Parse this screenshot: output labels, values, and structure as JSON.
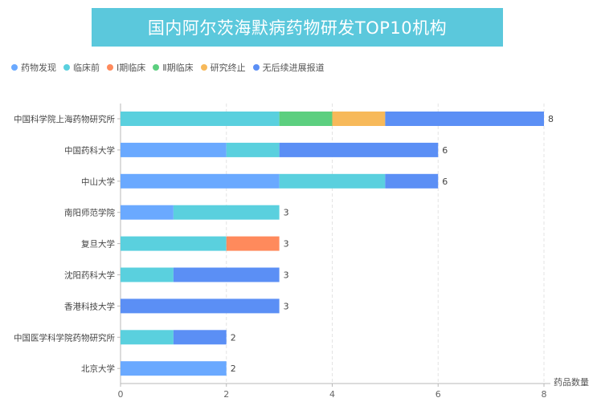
{
  "chart_data": {
    "type": "bar",
    "orientation": "horizontal",
    "stacked": true,
    "title": "国内阿尔茨海默病药物研发TOP10机构",
    "xlabel": "药品数量",
    "ylabel": "",
    "xlim": [
      0,
      8
    ],
    "x_ticks": [
      "0",
      "2",
      "4",
      "6",
      "8"
    ],
    "grid": "vertical dashed",
    "legend_position": "top-left",
    "categories": [
      "中国科学院上海药物研究所",
      "中国药科大学",
      "中山大学",
      "南阳师范学院",
      "复旦大学",
      "沈阳药科大学",
      "香港科技大学",
      "中国医学科学院药物研究所",
      "北京大学"
    ],
    "totals": [
      8,
      6,
      6,
      3,
      3,
      3,
      3,
      2,
      2
    ],
    "series": [
      {
        "name": "药物发现",
        "color": "#6aa9ff",
        "values": [
          0,
          2,
          3,
          1,
          0,
          0,
          0,
          0,
          2
        ]
      },
      {
        "name": "临床前",
        "color": "#5ad0de",
        "values": [
          3,
          1,
          2,
          2,
          2,
          1,
          0,
          1,
          0
        ]
      },
      {
        "name": "Ⅰ期临床",
        "color": "#ff8a5c",
        "values": [
          0,
          0,
          0,
          0,
          1,
          0,
          0,
          0,
          0
        ]
      },
      {
        "name": "Ⅱ期临床",
        "color": "#5ccf7f",
        "values": [
          1,
          0,
          0,
          0,
          0,
          0,
          0,
          0,
          0
        ]
      },
      {
        "name": "研究终止",
        "color": "#f7b95a",
        "values": [
          1,
          0,
          0,
          0,
          0,
          0,
          0,
          0,
          0
        ]
      },
      {
        "name": "无后续进展报道",
        "color": "#5b8ff5",
        "values": [
          3,
          3,
          1,
          0,
          0,
          2,
          3,
          1,
          0
        ]
      }
    ]
  }
}
